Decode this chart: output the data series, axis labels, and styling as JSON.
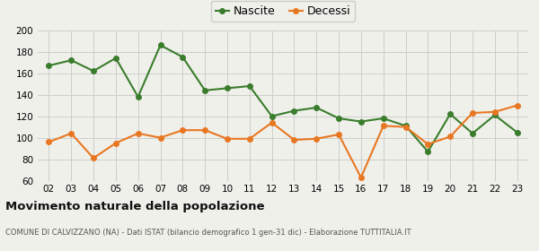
{
  "years": [
    "02",
    "03",
    "04",
    "05",
    "06",
    "07",
    "08",
    "09",
    "10",
    "11",
    "12",
    "13",
    "14",
    "15",
    "16",
    "17",
    "18",
    "19",
    "20",
    "21",
    "22",
    "23"
  ],
  "nascite": [
    167,
    172,
    162,
    174,
    138,
    186,
    175,
    144,
    146,
    148,
    120,
    125,
    128,
    118,
    115,
    118,
    111,
    87,
    122,
    104,
    121,
    105
  ],
  "decessi": [
    96,
    104,
    81,
    95,
    104,
    100,
    107,
    107,
    99,
    99,
    114,
    98,
    99,
    103,
    63,
    111,
    110,
    94,
    101,
    123,
    124,
    130
  ],
  "nascite_color": "#3a7d2c",
  "decessi_color": "#e87722",
  "bg_color": "#f0f0eb",
  "grid_color": "#cccccc",
  "ylim": [
    60,
    200
  ],
  "yticks": [
    60,
    80,
    100,
    120,
    140,
    160,
    180,
    200
  ],
  "title": "Movimento naturale della popolazione",
  "subtitle": "COMUNE DI CALVIZZANO (NA) - Dati ISTAT (bilancio demografico 1 gen-31 dic) - Elaborazione TUTTITALIA.IT",
  "legend_nascite": "Nascite",
  "legend_decessi": "Decessi",
  "marker_size": 4,
  "line_width": 1.5
}
